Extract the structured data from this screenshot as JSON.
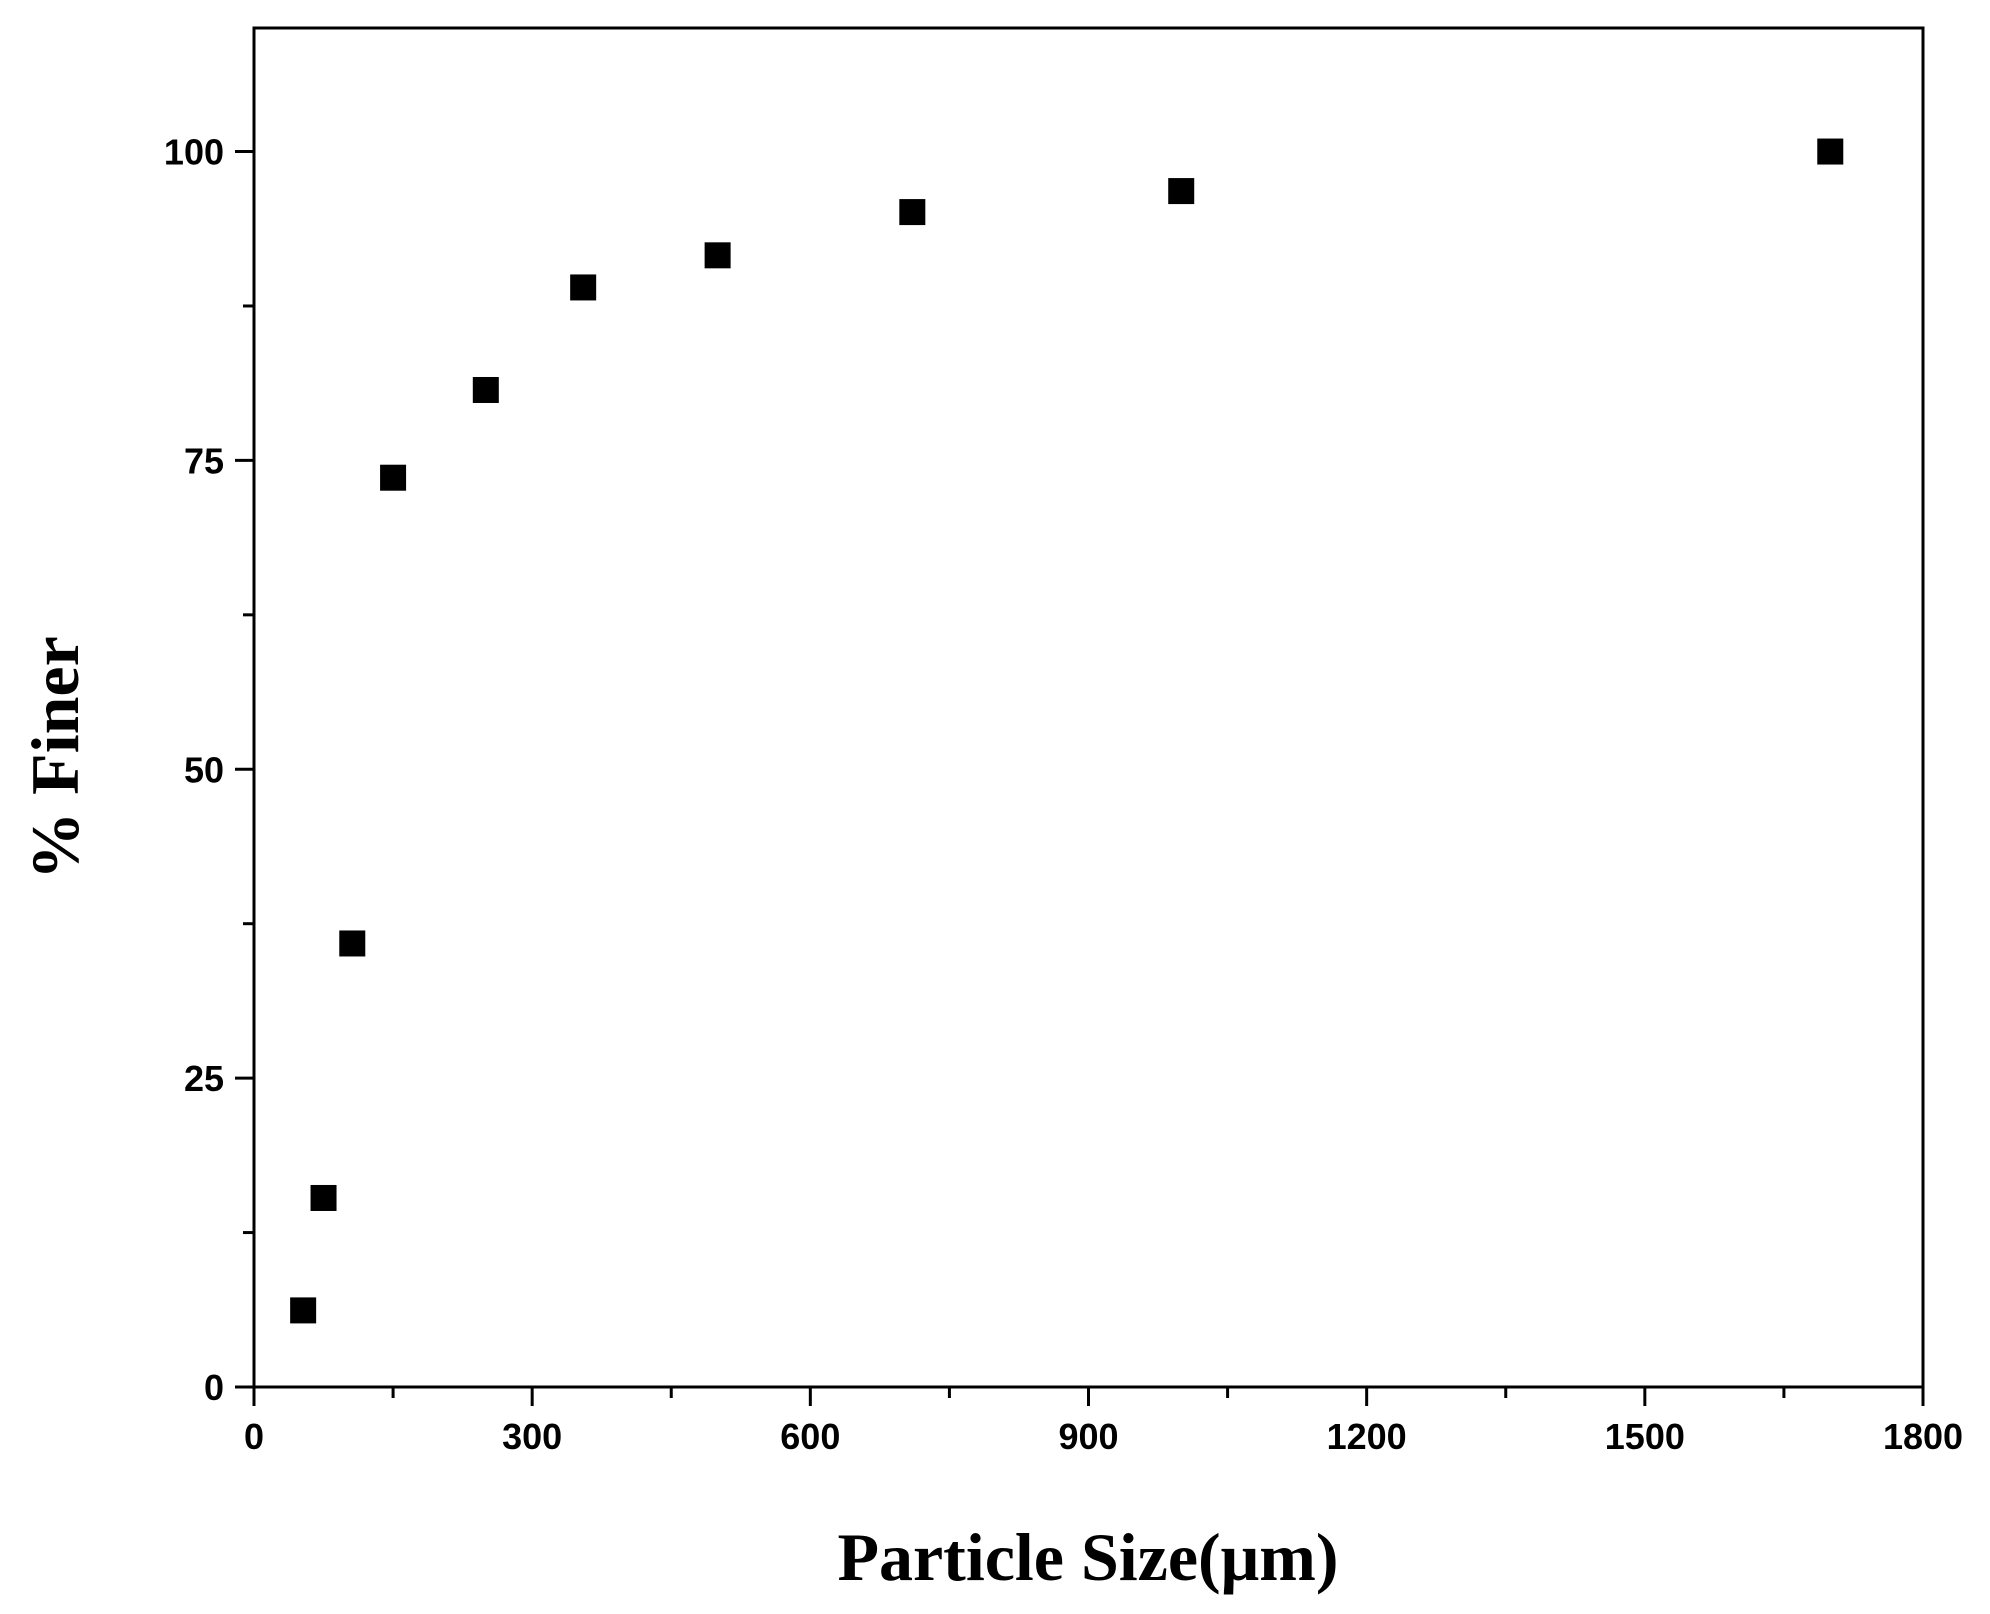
{
  "chart_data": {
    "type": "scatter",
    "x_label": "Particle Size(μm)",
    "y_label": "% Finer",
    "x": [
      53,
      75,
      106,
      150,
      250,
      355,
      500,
      710,
      1000,
      1700
    ],
    "series": [
      {
        "color": "#000000",
        "values": [
          6.2,
          15.3,
          35.9,
          73.6,
          80.7,
          89.0,
          91.6,
          95.1,
          96.8,
          100
        ]
      }
    ],
    "xlim": [
      0,
      1800
    ],
    "xticks": [
      0,
      300,
      600,
      900,
      1200,
      1500,
      1800
    ],
    "ylim": [
      0,
      110
    ],
    "yticks": [
      0,
      25,
      50,
      75,
      100
    ],
    "grid": false
  }
}
